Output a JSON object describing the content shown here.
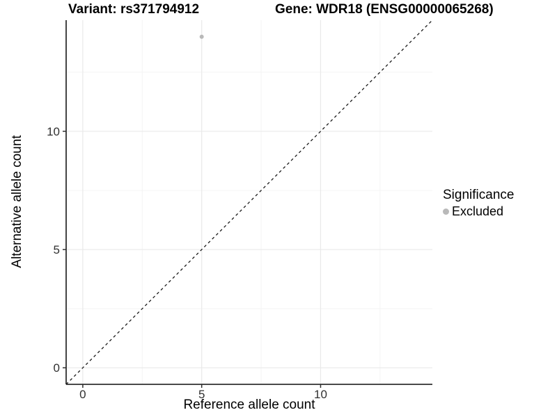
{
  "titles": {
    "variant": "Variant: rs371794912",
    "gene": "Gene: WDR18 (ENSG00000065268)"
  },
  "axes": {
    "x_label": "Reference allele count",
    "y_label": "Alternative allele count"
  },
  "legend": {
    "title": "Significance",
    "items": [
      {
        "label": "Excluded",
        "color": "#b9b9b9"
      }
    ]
  },
  "chart_data": {
    "type": "scatter",
    "title": "Variant: rs371794912 | Gene: WDR18 (ENSG00000065268)",
    "xlabel": "Reference allele count",
    "ylabel": "Alternative allele count",
    "xlim": [
      -0.7,
      14.7
    ],
    "ylim": [
      -0.7,
      14.7
    ],
    "x_major_ticks": [
      0,
      5,
      10
    ],
    "y_major_ticks": [
      0,
      5,
      10
    ],
    "x_minor_ticks": [
      2.5,
      7.5,
      12.5
    ],
    "y_minor_ticks": [
      2.5,
      7.5,
      12.5
    ],
    "grid": true,
    "series": [
      {
        "name": "Excluded",
        "color": "#b9b9b9",
        "points": [
          {
            "x": 5,
            "y": 14
          }
        ]
      }
    ],
    "reference_line": {
      "type": "identity y = x",
      "slope": 1,
      "intercept": 0,
      "style": "dashed",
      "color": "#1a1a1a"
    },
    "legend": {
      "title": "Significance",
      "entries": [
        "Excluded"
      ],
      "position": "right"
    },
    "colors": {
      "grid_major": "#e9e9e9",
      "grid_minor": "#f4f4f4",
      "axis_line": "#2f2f2f",
      "tick_label": "#303030",
      "point": "#b9b9b9"
    }
  }
}
